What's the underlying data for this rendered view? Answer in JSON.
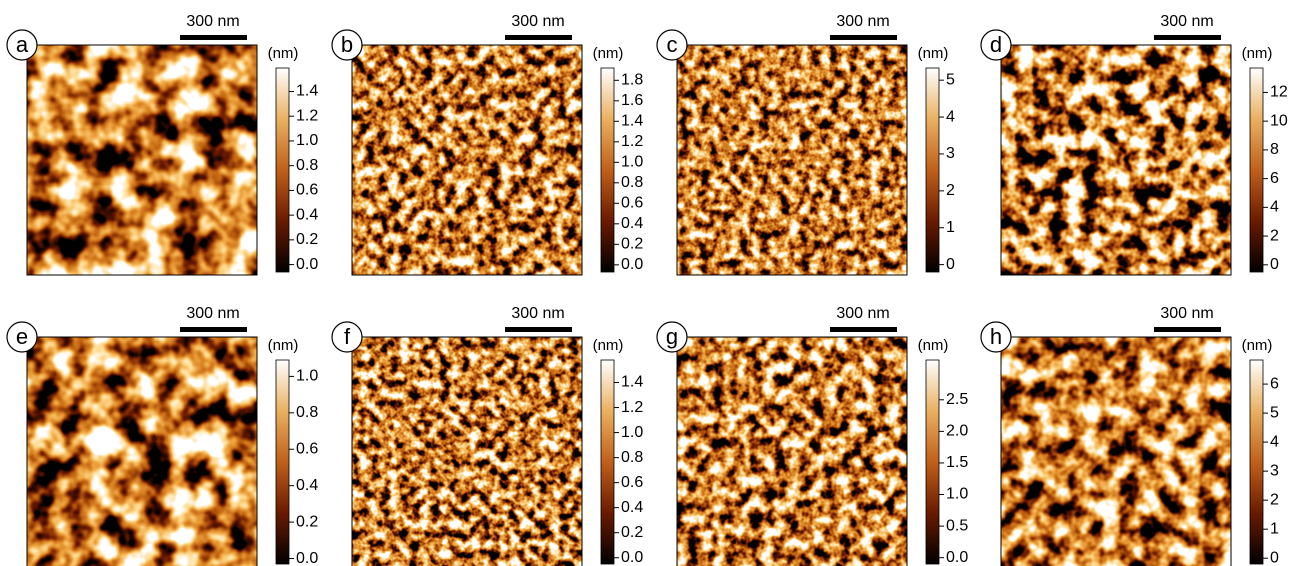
{
  "panels": [
    {
      "label": "a",
      "scale_bar": "300 nm",
      "colorbar": {
        "unit": "(nm)",
        "lim": [
          -0.06,
          1.59
        ],
        "ticks": [
          {
            "value": 0,
            "label": "0.0"
          },
          0.2,
          0.4,
          0.6,
          0.8,
          {
            "value": 1,
            "label": "1.0"
          },
          1.2,
          1.4
        ]
      }
    },
    {
      "label": "b",
      "scale_bar": "300 nm",
      "colorbar": {
        "unit": "(nm)",
        "lim": [
          -0.07,
          1.92
        ],
        "ticks": [
          {
            "value": 0,
            "label": "0.0"
          },
          0.2,
          0.4,
          0.6,
          0.8,
          {
            "value": 1,
            "label": "1.0"
          },
          1.2,
          1.4,
          1.6,
          1.8
        ]
      }
    },
    {
      "label": "c",
      "scale_bar": "300 nm",
      "colorbar": {
        "unit": "(nm)",
        "lim": [
          -0.2,
          5.33
        ],
        "ticks": [
          0,
          1,
          2,
          3,
          4,
          5
        ]
      }
    },
    {
      "label": "d",
      "scale_bar": "300 nm",
      "colorbar": {
        "unit": "(nm)",
        "lim": [
          -0.5,
          13.7
        ],
        "ticks": [
          0,
          2,
          4,
          6,
          8,
          10,
          12
        ]
      }
    },
    {
      "label": "e",
      "scale_bar": "300 nm",
      "colorbar": {
        "unit": "(nm)",
        "lim": [
          -0.03,
          1.09
        ],
        "ticks": [
          {
            "value": 0,
            "label": "0.0"
          },
          0.2,
          0.4,
          0.6,
          0.8,
          {
            "value": 1,
            "label": "1.0"
          }
        ]
      }
    },
    {
      "label": "f",
      "scale_bar": "300 nm",
      "colorbar": {
        "unit": "(nm)",
        "lim": [
          -0.05,
          1.58
        ],
        "ticks": [
          {
            "value": 0,
            "label": "0.0"
          },
          0.2,
          0.4,
          0.6,
          0.8,
          {
            "value": 1,
            "label": "1.0"
          },
          1.2,
          1.4
        ]
      }
    },
    {
      "label": "g",
      "scale_bar": "300 nm",
      "colorbar": {
        "unit": "(nm)",
        "lim": [
          -0.1,
          3.13
        ],
        "ticks": [
          {
            "value": 0,
            "label": "0.0"
          },
          0.5,
          {
            "value": 1,
            "label": "1.0"
          },
          1.5,
          {
            "value": 2,
            "label": "2.0"
          },
          2.5
        ]
      }
    },
    {
      "label": "h",
      "scale_bar": "300 nm",
      "colorbar": {
        "unit": "(nm)",
        "lim": [
          -0.2,
          6.83
        ],
        "ticks": [
          0,
          1,
          2,
          3,
          4,
          5,
          6
        ]
      }
    }
  ]
}
